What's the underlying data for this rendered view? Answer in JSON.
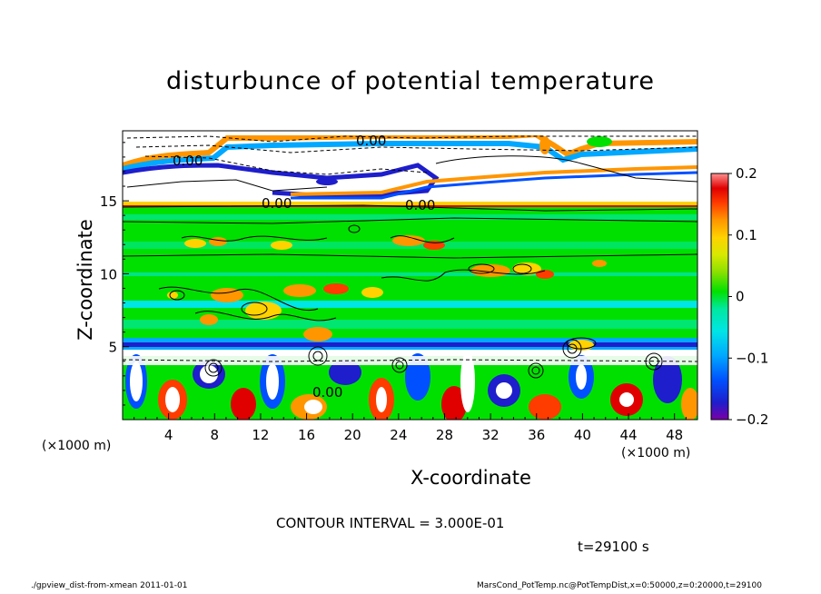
{
  "chart_data": {
    "type": "heatmap",
    "title": "disturbunce of potential temperature",
    "xlabel": "X-coordinate",
    "ylabel": "Z-coordinate",
    "x_unit": "(×1000 m)",
    "y_unit": "(×1000 m)",
    "xlim": [
      0,
      50
    ],
    "ylim": [
      0,
      19.8
    ],
    "x_ticks": [
      4,
      8,
      12,
      16,
      20,
      24,
      28,
      32,
      36,
      40,
      44,
      48
    ],
    "y_ticks": [
      5,
      10,
      15
    ],
    "colorbar": {
      "range": [
        -0.2,
        0.2
      ],
      "tick_labels": [
        "0.2",
        "0.1",
        "0",
        "−0.1",
        "−0.2"
      ],
      "tick_values": [
        0.2,
        0.1,
        0,
        -0.1,
        -0.2
      ]
    },
    "contour_labels": [
      "0.00",
      "0.00",
      "0.00",
      "0.00",
      "0.00"
    ],
    "contour_interval_text": "CONTOUR INTERVAL = 3.000E-01",
    "time_text": "t=29100 s",
    "grid": false
  },
  "footer": {
    "left": "./gpview_dist-from-xmean  2011-01-01",
    "right": "MarsCond_PotTemp.nc@PotTempDist,x=0:50000,z=0:20000,t=29100"
  },
  "colors": {
    "palette": [
      "#7a00a8",
      "#1e1ecc",
      "#0050ff",
      "#00a8ff",
      "#00e5e5",
      "#00e8a0",
      "#00e000",
      "#8ce000",
      "#d8e800",
      "#ffd200",
      "#ff9600",
      "#ff3c00",
      "#e00000",
      "#ff9090",
      "#ffffff"
    ]
  }
}
